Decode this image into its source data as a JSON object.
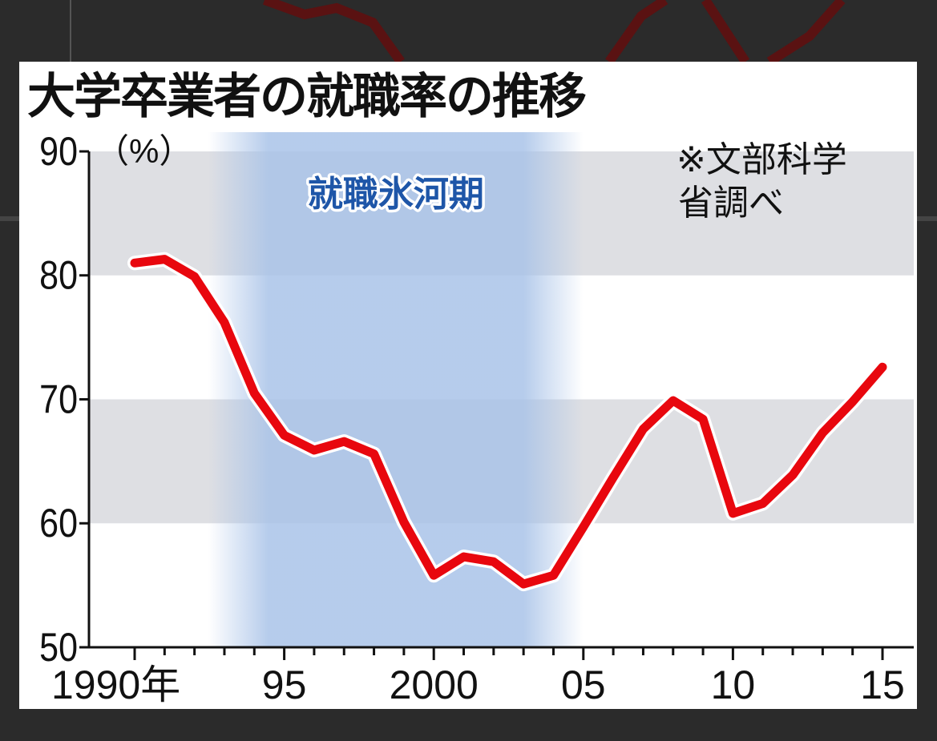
{
  "chart_data": {
    "type": "line",
    "title": "大学卒業者の就職率の推移",
    "ylabel": "（%）",
    "note": "※文部科学省調べ",
    "note_lines": [
      "※文部科学",
      "省調べ"
    ],
    "shaded_period": {
      "label": "就職氷河期",
      "start": 1993,
      "end": 2005,
      "color": "#a9c3e8"
    },
    "ylim": [
      50,
      90
    ],
    "yticks": [
      50,
      60,
      70,
      80,
      90
    ],
    "xlim": [
      1990,
      2015
    ],
    "xticks": [
      {
        "value": 1990,
        "label": "1990年"
      },
      {
        "value": 1995,
        "label": "95"
      },
      {
        "value": 2000,
        "label": "2000"
      },
      {
        "value": 2005,
        "label": "05"
      },
      {
        "value": 2010,
        "label": "10"
      },
      {
        "value": 2015,
        "label": "15"
      }
    ],
    "band_color": "#dedfe3",
    "series": [
      {
        "color": "#e8070e",
        "x": [
          1990,
          1991,
          1992,
          1993,
          1994,
          1995,
          1996,
          1997,
          1998,
          1999,
          2000,
          2001,
          2002,
          2003,
          2004,
          2005,
          2006,
          2007,
          2008,
          2009,
          2010,
          2011,
          2012,
          2013,
          2014,
          2015
        ],
        "values": [
          81.0,
          81.3,
          79.9,
          76.2,
          70.5,
          67.1,
          65.9,
          66.6,
          65.6,
          60.1,
          55.8,
          57.3,
          56.9,
          55.1,
          55.8,
          59.7,
          63.7,
          67.6,
          69.9,
          68.4,
          60.8,
          61.6,
          63.9,
          67.3,
          69.8,
          72.6
        ]
      }
    ]
  }
}
